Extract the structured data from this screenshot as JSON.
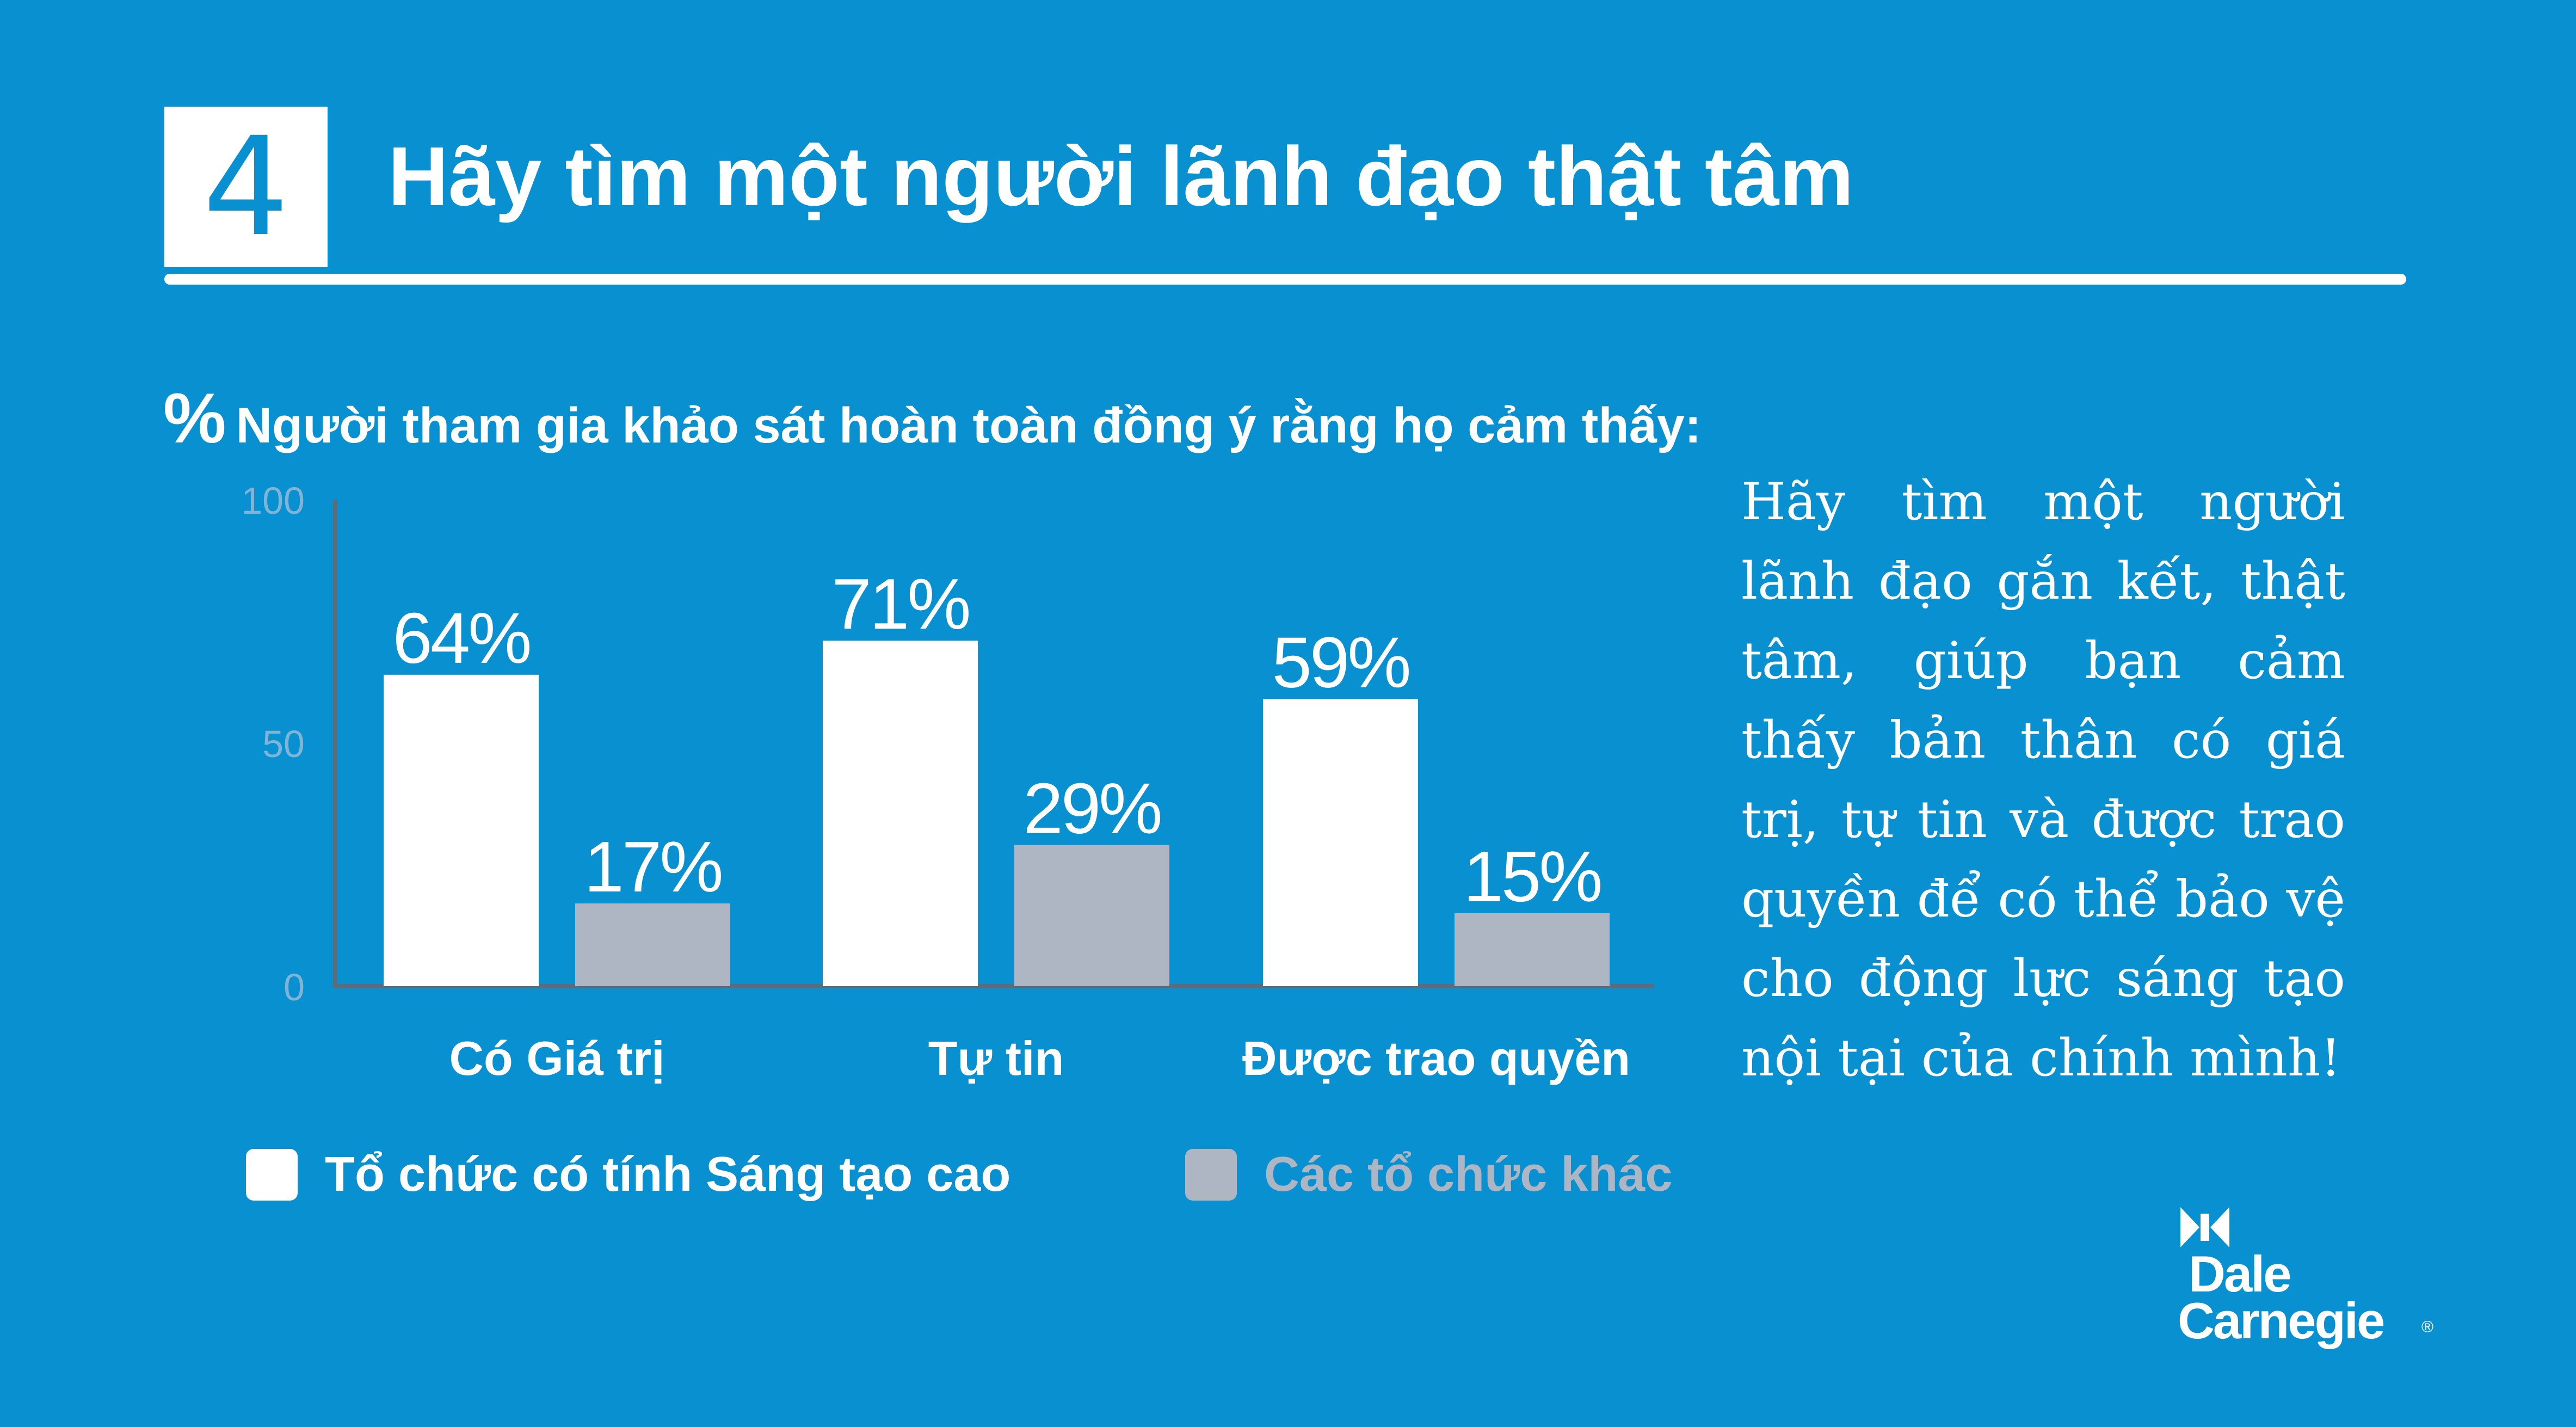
{
  "header": {
    "number": "4",
    "title": "Hãy tìm một người lãnh đạo thật tâm"
  },
  "chart_data": {
    "type": "bar",
    "subtitle_symbol": "%",
    "subtitle": "Người tham gia khảo sát hoàn toàn đồng ý rằng họ cảm thấy:",
    "categories": [
      "Có Giá trị",
      "Tự tin",
      "Được trao quyền"
    ],
    "series": [
      {
        "name": "Tổ chức có tính Sáng tạo cao",
        "values": [
          64,
          71,
          59
        ],
        "labels": [
          "64%",
          "71%",
          "59%"
        ],
        "color": "#ffffff"
      },
      {
        "name": "Các tổ chức khác",
        "values": [
          17,
          29,
          15
        ],
        "labels": [
          "17%",
          "29%",
          "15%"
        ],
        "color": "#adb6c2"
      }
    ],
    "ylim": [
      0,
      100
    ],
    "yticks": [
      0,
      50,
      100
    ],
    "xlabel": "",
    "ylabel": "",
    "grid": false,
    "legend_position": "bottom"
  },
  "body_text": "Hãy tìm một người lãnh đạo gắn kết, thật tâm, giúp bạn cảm thấy bản thân có giá trị, tự tin và được trao quyền để có thể bảo vệ cho động lực sáng tạo nội tại của chính mình!",
  "logo": {
    "line1": "Dale",
    "line2": "Carnegie",
    "registered": "®"
  },
  "colors": {
    "background": "#0890d0",
    "primary_bar": "#ffffff",
    "secondary_bar": "#adb6c2",
    "axis": "#5b6d7b",
    "tick_label": "#7fb4d6"
  }
}
